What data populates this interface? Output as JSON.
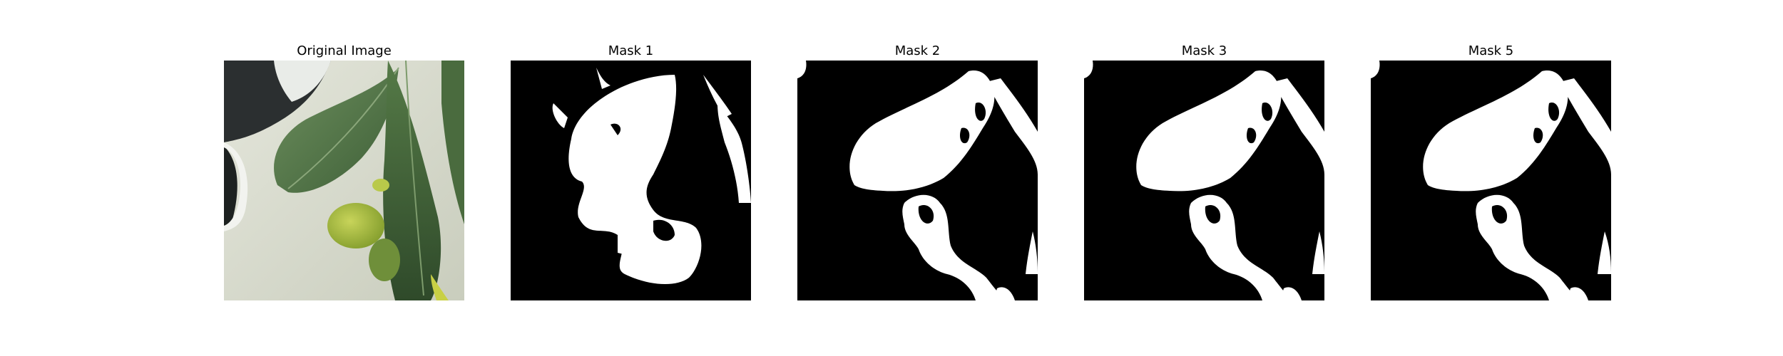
{
  "panels": [
    {
      "title": "Original Image",
      "kind": "photo"
    },
    {
      "title": "Mask 1",
      "kind": "mask"
    },
    {
      "title": "Mask 2",
      "kind": "mask"
    },
    {
      "title": "Mask 3",
      "kind": "mask"
    },
    {
      "title": "Mask 5",
      "kind": "mask"
    }
  ],
  "colors": {
    "mask_background": "#000000",
    "mask_foreground": "#ffffff",
    "leaf_dark": "#3f6138",
    "leaf_mid": "#5a7d4c",
    "leaf_light": "#a9bf3a",
    "background_light": "#d9dccd"
  }
}
